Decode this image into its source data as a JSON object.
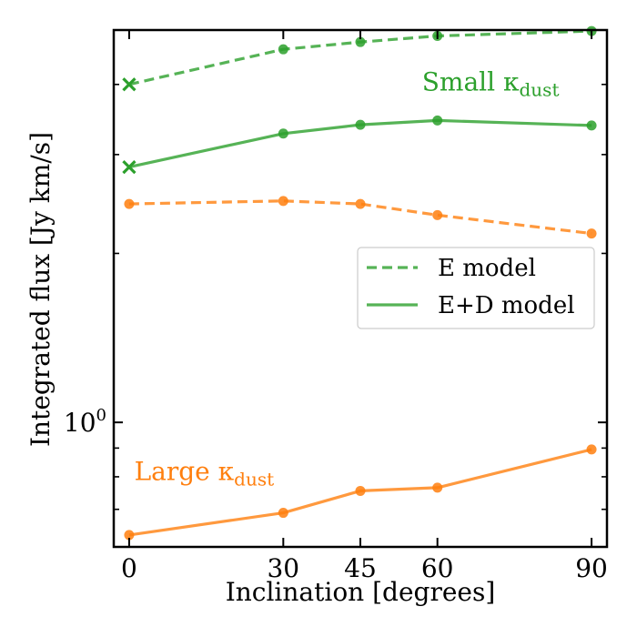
{
  "chart_data": {
    "type": "line",
    "xlabel": "Inclination [degrees]",
    "ylabel": "Integrated flux [Jy km/s]",
    "yscale": "log",
    "xlim": [
      -3,
      93
    ],
    "ylim": [
      0.6,
      5.0
    ],
    "xticks": [
      0,
      30,
      45,
      60,
      90
    ],
    "xtick_labels": [
      "0",
      "30",
      "45",
      "60",
      "90"
    ],
    "ytick_major": [
      1.0
    ],
    "ytick_major_base": "10",
    "ytick_major_exp": "0",
    "ytick_minor": [
      0.6,
      0.7,
      0.8,
      0.9,
      2,
      3,
      4
    ],
    "colors": {
      "green": "#2ca02c",
      "orange": "#ff7f0e"
    },
    "annotations": [
      {
        "text_main": "Small κ",
        "text_sub": "dust",
        "color": "green",
        "at": [
          57,
          3.9
        ]
      },
      {
        "text_main": "Large κ",
        "text_sub": "dust",
        "color": "orange",
        "at": [
          1,
          0.79
        ]
      }
    ],
    "legend": {
      "placement": "center-right",
      "entries": [
        {
          "label": "E model",
          "style": "dashed"
        },
        {
          "label": "E+D model",
          "style": "solid"
        }
      ]
    },
    "series": [
      {
        "name": "Small κdust E model",
        "color": "green",
        "style": "dashed",
        "x": [
          0,
          30,
          45,
          60,
          90
        ],
        "y": [
          4.0,
          4.62,
          4.76,
          4.88,
          4.98
        ],
        "first_marker": "x"
      },
      {
        "name": "Small κdust E+D model",
        "color": "green",
        "style": "solid",
        "x": [
          0,
          30,
          45,
          60,
          90
        ],
        "y": [
          2.85,
          3.27,
          3.39,
          3.45,
          3.38
        ],
        "first_marker": "x"
      },
      {
        "name": "Large κdust E model",
        "color": "orange",
        "style": "dashed",
        "x": [
          0,
          30,
          45,
          60,
          90
        ],
        "y": [
          2.45,
          2.48,
          2.45,
          2.34,
          2.17
        ],
        "first_marker": "o"
      },
      {
        "name": "Large κdust E+D model",
        "color": "orange",
        "style": "solid",
        "x": [
          0,
          30,
          45,
          60,
          90
        ],
        "y": [
          0.63,
          0.69,
          0.755,
          0.765,
          0.895
        ],
        "first_marker": "o"
      }
    ]
  }
}
